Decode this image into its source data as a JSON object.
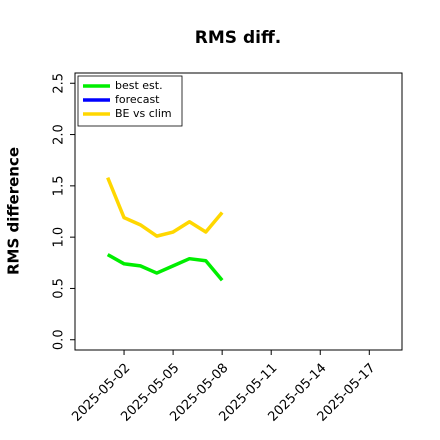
{
  "chart_data": {
    "type": "line",
    "title": "RMS diff.",
    "ylabel": "RMS difference",
    "x": [
      "2025-05-01",
      "2025-05-02",
      "2025-05-03",
      "2025-05-04",
      "2025-05-05",
      "2025-05-06",
      "2025-05-07",
      "2025-05-08"
    ],
    "series": [
      {
        "name": "best est.",
        "color": "#00ee00",
        "values": [
          0.83,
          0.74,
          0.72,
          0.65,
          0.72,
          0.79,
          0.77,
          0.58
        ]
      },
      {
        "name": "forecast",
        "color": "#0000ff",
        "values": [
          null,
          null,
          null,
          null,
          null,
          null,
          null,
          null
        ]
      },
      {
        "name": "BE vs clim",
        "color": "#ffd700",
        "values": [
          1.58,
          1.19,
          1.12,
          1.01,
          1.05,
          1.15,
          1.05,
          1.24
        ]
      }
    ],
    "xlim": [
      "2025-04-29",
      "2025-05-19"
    ],
    "xticks": [
      "2025-05-02",
      "2025-05-05",
      "2025-05-08",
      "2025-05-11",
      "2025-05-14",
      "2025-05-17"
    ],
    "xtick_colors": [
      "#000000",
      "#000000",
      "#228b22",
      "#000000",
      "#000000",
      "#000000"
    ],
    "ylim": [
      -0.1,
      2.6
    ],
    "yticks": [
      {
        "value": 0,
        "label": "0.0"
      },
      0.5,
      {
        "value": 1,
        "label": "1.0"
      },
      1.5,
      {
        "value": 2,
        "label": "2.0"
      },
      2.5
    ],
    "legend": "upper left",
    "grid": false
  }
}
